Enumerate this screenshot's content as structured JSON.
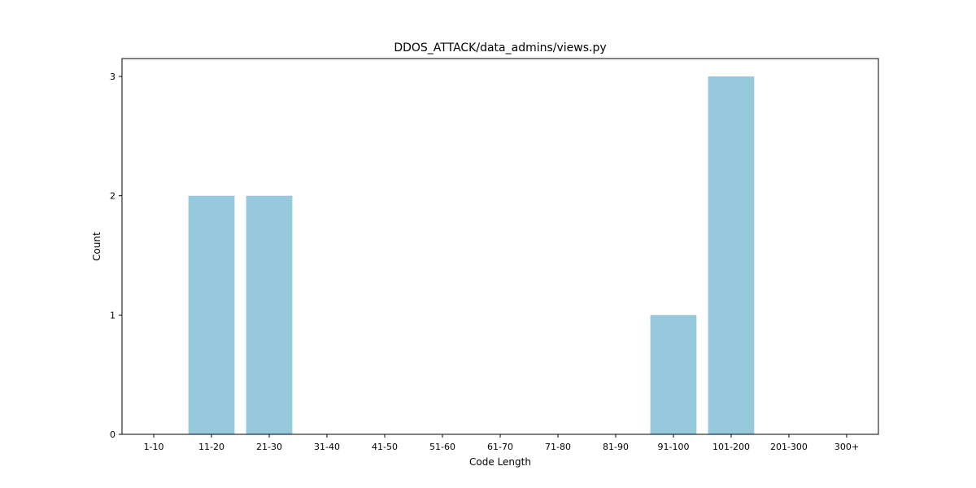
{
  "chart_data": {
    "type": "bar",
    "title": "DDOS_ATTACK/data_admins/views.py",
    "xlabel": "Code Length",
    "ylabel": "Count",
    "categories": [
      "1-10",
      "11-20",
      "21-30",
      "31-40",
      "41-50",
      "51-60",
      "61-70",
      "71-80",
      "81-90",
      "91-100",
      "101-200",
      "201-300",
      "300+"
    ],
    "values": [
      0,
      2,
      2,
      0,
      0,
      0,
      0,
      0,
      0,
      1,
      3,
      0,
      0
    ],
    "ylim": [
      0,
      3.15
    ],
    "yticks": [
      "0",
      "1",
      "2",
      "3"
    ],
    "grid": false,
    "bar_color": "#96c9dc"
  }
}
